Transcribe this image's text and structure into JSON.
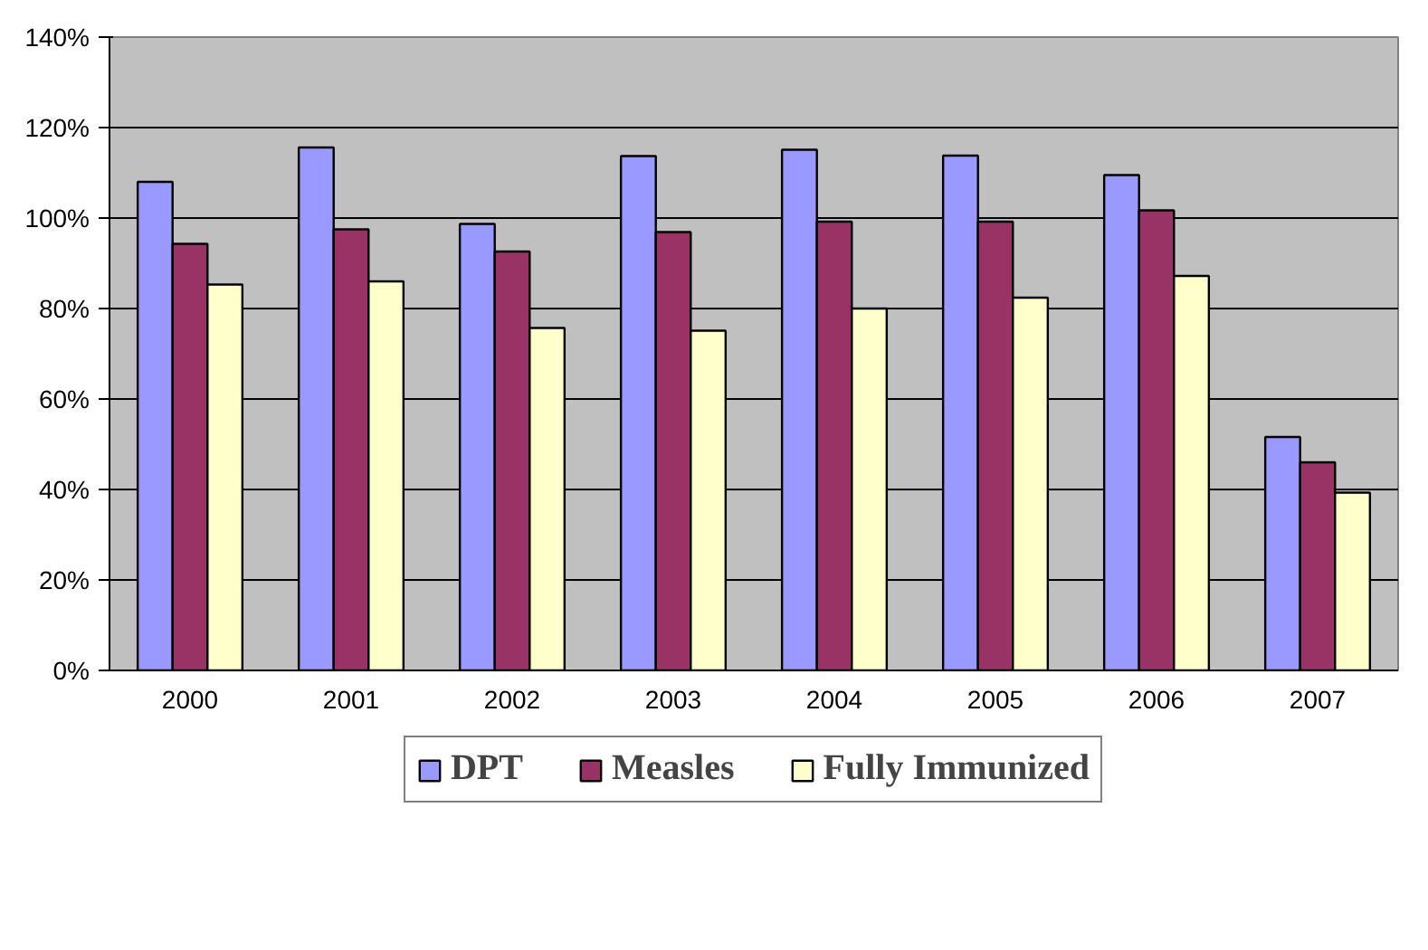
{
  "chart_data": {
    "type": "bar",
    "categories": [
      "2000",
      "2001",
      "2002",
      "2003",
      "2004",
      "2005",
      "2006",
      "2007"
    ],
    "series": [
      {
        "name": "DPT",
        "color": "#9999ff",
        "values": [
          108,
          115.6,
          98.7,
          113.7,
          115.1,
          113.8,
          109.5,
          51.6
        ]
      },
      {
        "name": "Measles",
        "color": "#993366",
        "values": [
          94.3,
          97.5,
          92.6,
          96.9,
          99.2,
          99.2,
          101.7,
          46
        ]
      },
      {
        "name": "Fully Immunized",
        "color": "#ffffcc",
        "values": [
          85.3,
          86,
          75.7,
          75.1,
          80,
          82.4,
          87.2,
          39.3
        ]
      }
    ],
    "ylim": [
      0,
      140
    ],
    "yticks": [
      {
        "value": 0,
        "label": "0%"
      },
      {
        "value": 20,
        "label": "20%"
      },
      {
        "value": 40,
        "label": "40%"
      },
      {
        "value": 60,
        "label": "60%"
      },
      {
        "value": 80,
        "label": "80%"
      },
      {
        "value": 100,
        "label": "100%"
      },
      {
        "value": 120,
        "label": "120%"
      },
      {
        "value": 140,
        "label": "140%"
      }
    ],
    "grid": "y",
    "legend": "bottom"
  }
}
